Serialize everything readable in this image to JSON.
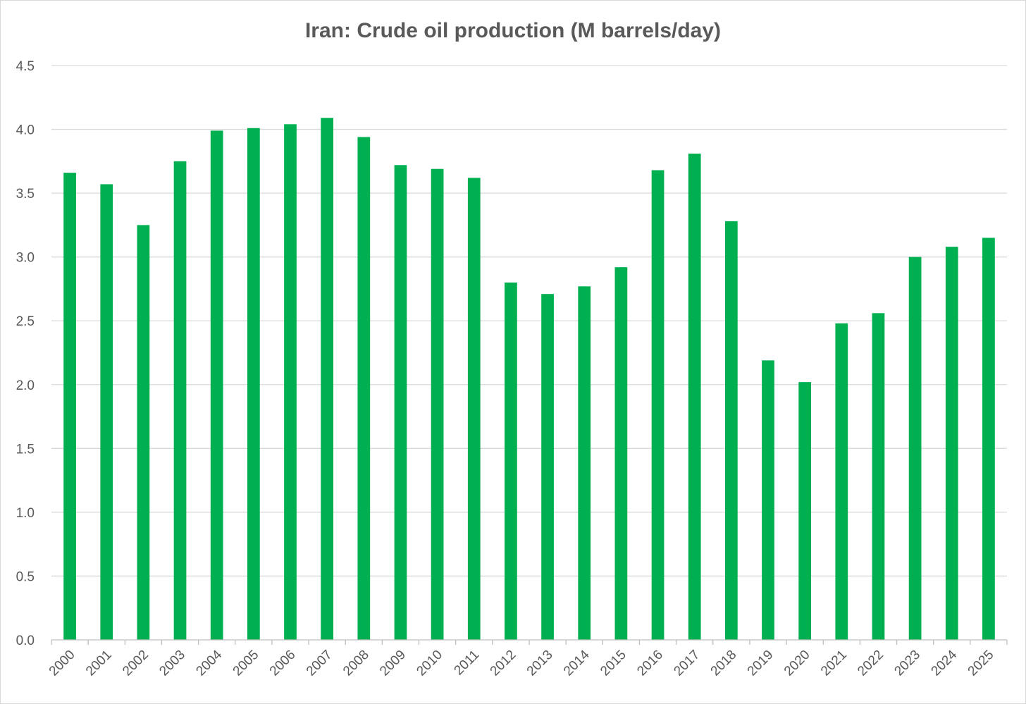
{
  "chart_data": {
    "type": "bar",
    "title": "Iran: Crude oil production (M barrels/day)",
    "xlabel": "",
    "ylabel": "",
    "categories": [
      "2000",
      "2001",
      "2002",
      "2003",
      "2004",
      "2005",
      "2006",
      "2007",
      "2008",
      "2009",
      "2010",
      "2011",
      "2012",
      "2013",
      "2014",
      "2015",
      "2016",
      "2017",
      "2018",
      "2019",
      "2020",
      "2021",
      "2022",
      "2023",
      "2024",
      "2025"
    ],
    "values": [
      3.66,
      3.57,
      3.25,
      3.75,
      3.99,
      4.01,
      4.04,
      4.09,
      3.94,
      3.72,
      3.69,
      3.62,
      2.8,
      2.71,
      2.77,
      2.92,
      3.68,
      3.81,
      3.28,
      2.19,
      2.02,
      2.48,
      2.56,
      3.0,
      3.08,
      3.15
    ],
    "ylim": [
      0,
      4.5
    ],
    "yticks": [
      "0.0",
      "0.5",
      "1.0",
      "1.5",
      "2.0",
      "2.5",
      "3.0",
      "3.5",
      "4.0",
      "4.5"
    ],
    "ytick_values": [
      0,
      0.5,
      1.0,
      1.5,
      2.0,
      2.5,
      3.0,
      3.5,
      4.0,
      4.5
    ],
    "grid": true,
    "legend": "none",
    "bar_color": "#00b050",
    "grid_color": "#d9d9d9",
    "axis_color": "#bfbfbf",
    "text_color": "#595959"
  }
}
